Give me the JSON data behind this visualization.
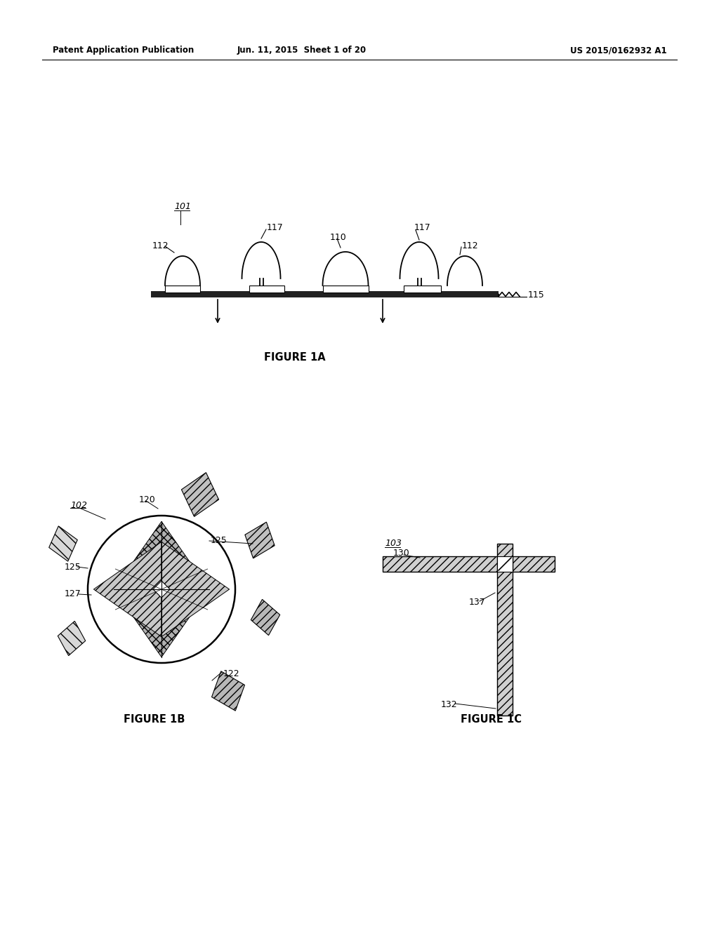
{
  "bg_color": "#ffffff",
  "header_left": "Patent Application Publication",
  "header_center": "Jun. 11, 2015  Sheet 1 of 20",
  "header_right": "US 2015/0162932 A1",
  "fig1a_label": "FIGURE 1A",
  "fig1b_label": "FIGURE 1B",
  "fig1c_label": "FIGURE 1C",
  "label_101": "101",
  "label_110": "110",
  "label_112a": "112",
  "label_112b": "112",
  "label_115": "115",
  "label_117a": "117",
  "label_117b": "117",
  "label_102": "102",
  "label_120": "120",
  "label_122": "122",
  "label_125a": "125",
  "label_125b": "125",
  "label_127": "127",
  "label_103": "103",
  "label_130": "130",
  "label_132": "132",
  "label_137": "137"
}
